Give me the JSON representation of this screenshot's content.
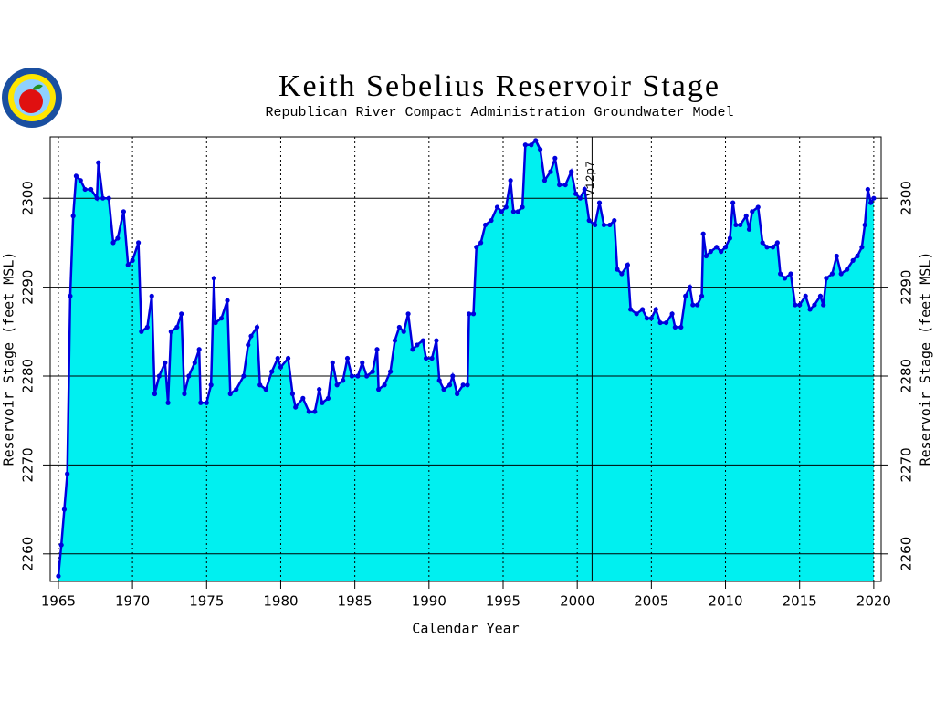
{
  "chart_data": {
    "type": "line",
    "title": "Keith Sebelius Reservoir Stage",
    "subtitle": "Republican River Compact Administration Groundwater Model",
    "xlabel": "Calendar Year",
    "ylabel": "Reservoir Stage (feet MSL)",
    "xlim": [
      1964.45,
      2020.5
    ],
    "ylim": [
      2256.9,
      2306.9
    ],
    "xticks": [
      1965,
      1970,
      1975,
      1980,
      1985,
      1990,
      1995,
      2000,
      2005,
      2010,
      2015,
      2020
    ],
    "yticks": [
      2260,
      2270,
      2280,
      2290,
      2300
    ],
    "grid": true,
    "annotations": [
      {
        "x": 2001,
        "text": "V12p7"
      }
    ],
    "x": [
      1965.0,
      1965.2,
      1965.4,
      1965.6,
      1965.8,
      1966.0,
      1966.2,
      1966.5,
      1966.8,
      1967.2,
      1967.6,
      1967.7,
      1968.0,
      1968.4,
      1968.7,
      1969.0,
      1969.4,
      1969.7,
      1970.0,
      1970.4,
      1970.6,
      1971.0,
      1971.3,
      1971.5,
      1971.8,
      1972.2,
      1972.4,
      1972.6,
      1973.0,
      1973.3,
      1973.5,
      1973.8,
      1974.2,
      1974.5,
      1974.6,
      1975.0,
      1975.3,
      1975.5,
      1975.6,
      1976.0,
      1976.4,
      1976.6,
      1977.0,
      1977.5,
      1977.8,
      1978.0,
      1978.4,
      1978.6,
      1979.0,
      1979.4,
      1979.8,
      1980.0,
      1980.5,
      1980.8,
      1981.0,
      1981.5,
      1981.9,
      1982.3,
      1982.6,
      1982.8,
      1983.2,
      1983.5,
      1983.8,
      1984.2,
      1984.5,
      1984.8,
      1985.2,
      1985.5,
      1985.8,
      1986.2,
      1986.5,
      1986.6,
      1987.0,
      1987.4,
      1987.7,
      1988.0,
      1988.3,
      1988.6,
      1988.9,
      1989.2,
      1989.6,
      1989.8,
      1990.2,
      1990.5,
      1990.7,
      1991.0,
      1991.4,
      1991.6,
      1991.9,
      1992.3,
      1992.6,
      1992.7,
      1993.0,
      1993.2,
      1993.5,
      1993.8,
      1994.2,
      1994.6,
      1994.9,
      1995.2,
      1995.5,
      1995.7,
      1996.0,
      1996.3,
      1996.5,
      1996.9,
      1997.2,
      1997.5,
      1997.8,
      1998.2,
      1998.5,
      1998.8,
      1999.2,
      1999.6,
      1999.9,
      2000.2,
      2000.5,
      2000.8,
      2001.2,
      2001.5,
      2001.8,
      2002.2,
      2002.5,
      2002.7,
      2003.0,
      2003.4,
      2003.6,
      2004.0,
      2004.4,
      2004.7,
      2005.0,
      2005.3,
      2005.6,
      2006.0,
      2006.4,
      2006.6,
      2007.0,
      2007.3,
      2007.6,
      2007.8,
      2008.1,
      2008.4,
      2008.5,
      2008.7,
      2009.0,
      2009.4,
      2009.7,
      2010.0,
      2010.3,
      2010.5,
      2010.7,
      2011.0,
      2011.4,
      2011.6,
      2011.8,
      2012.2,
      2012.5,
      2012.8,
      2013.2,
      2013.5,
      2013.7,
      2014.0,
      2014.4,
      2014.7,
      2015.0,
      2015.4,
      2015.7,
      2016.0,
      2016.4,
      2016.6,
      2016.8,
      2017.2,
      2017.5,
      2017.8,
      2018.2,
      2018.6,
      2018.9,
      2019.2,
      2019.4,
      2019.6,
      2019.8,
      2020.0
    ],
    "series": [
      {
        "color": "#0000dd",
        "fill": "#00f0f0",
        "values": [
          2257.5,
          2261,
          2265,
          2269,
          2289,
          2298,
          2302.5,
          2302,
          2301,
          2301,
          2300,
          2304,
          2300,
          2300,
          2295,
          2295.5,
          2298.5,
          2292.5,
          2293,
          2295,
          2285,
          2285.5,
          2289,
          2278,
          2280,
          2281.5,
          2277,
          2285,
          2285.5,
          2287,
          2278,
          2280,
          2281.5,
          2283,
          2277,
          2277,
          2279,
          2291,
          2286,
          2286.5,
          2288.5,
          2278,
          2278.5,
          2280,
          2283.5,
          2284.5,
          2285.5,
          2279,
          2278.5,
          2280.5,
          2282,
          2281,
          2282,
          2278,
          2276.5,
          2277.5,
          2276,
          2276,
          2278.5,
          2277,
          2277.5,
          2281.5,
          2279,
          2279.5,
          2282,
          2280,
          2280,
          2281.5,
          2280,
          2280.5,
          2283,
          2278.5,
          2279,
          2280.5,
          2284,
          2285.5,
          2285,
          2287,
          2283,
          2283.5,
          2284,
          2282,
          2282,
          2284,
          2279.5,
          2278.5,
          2279,
          2280,
          2278,
          2279,
          2279,
          2287,
          2287,
          2294.5,
          2295,
          2297,
          2297.5,
          2299,
          2298.5,
          2299,
          2302,
          2298.5,
          2298.5,
          2299,
          2306,
          2306,
          2306.5,
          2305.5,
          2302,
          2303,
          2304.5,
          2301.5,
          2301.5,
          2303,
          2300.5,
          2300,
          2301,
          2297.5,
          2297,
          2299.5,
          2297,
          2297,
          2297.5,
          2292,
          2291.5,
          2292.5,
          2287.5,
          2287,
          2287.5,
          2286.5,
          2286.5,
          2287.5,
          2286,
          2286,
          2287,
          2285.5,
          2285.5,
          2289,
          2290,
          2288,
          2288,
          2289,
          2296,
          2293.5,
          2294,
          2294.5,
          2294,
          2294.5,
          2295.5,
          2299.5,
          2297,
          2297,
          2298,
          2296.5,
          2298.5,
          2299,
          2295,
          2294.5,
          2294.5,
          2295,
          2291.5,
          2291,
          2291.5,
          2288,
          2288,
          2289,
          2287.5,
          2288,
          2289,
          2288,
          2291,
          2291.5,
          2293.5,
          2291.5,
          2292,
          2293,
          2293.5,
          2294.5,
          2297,
          2301,
          2299.5,
          2300
        ]
      }
    ]
  }
}
